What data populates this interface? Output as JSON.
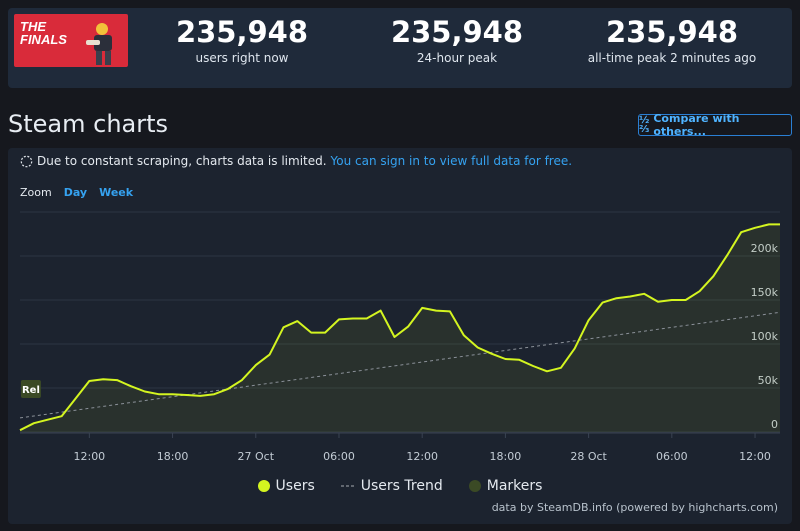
{
  "game": {
    "logo_text": "THE FINALS"
  },
  "stats": [
    {
      "value": "235,948",
      "label": "users right now"
    },
    {
      "value": "235,948",
      "label": "24-hour peak"
    },
    {
      "value": "235,948",
      "label": "all-time peak 2 minutes ago"
    }
  ],
  "section": {
    "title": "Steam charts",
    "compare_label": "Compare with others..."
  },
  "notice": {
    "text": "Due to constant scraping, charts data is limited.",
    "link": "You can sign in to view full data for free."
  },
  "zoom": {
    "label": "Zoom",
    "options": [
      "Day",
      "Week"
    ]
  },
  "credit": "data by SteamDB.info (powered by highcharts.com)",
  "colors": {
    "users": "#d4f520",
    "trend": "#8a9098",
    "markers": "#3b4a25",
    "accent": "#35a2f0"
  },
  "chart_data": {
    "type": "line",
    "x_tick_labels": [
      "12:00",
      "18:00",
      "27 Oct",
      "06:00",
      "12:00",
      "18:00",
      "28 Oct",
      "06:00",
      "12:00"
    ],
    "x_tick_hours": [
      12,
      18,
      24,
      30,
      36,
      42,
      48,
      54,
      60
    ],
    "y_tick_labels": [
      "0",
      "50k",
      "100k",
      "150k",
      "200k"
    ],
    "y_ticks": [
      0,
      50000,
      100000,
      150000,
      200000
    ],
    "ylim": [
      0,
      250000
    ],
    "xlim_hours": [
      7,
      61.8
    ],
    "marker": {
      "label": "Rel",
      "hour": 7.5
    },
    "series": [
      {
        "name": "Users",
        "hours": [
          7,
          8,
          9,
          10,
          11,
          12,
          13,
          14,
          15,
          16,
          17,
          18,
          19,
          20,
          21,
          22,
          23,
          24,
          25,
          26,
          27,
          28,
          29,
          30,
          31,
          32,
          33,
          34,
          35,
          36,
          37,
          38,
          39,
          40,
          41,
          42,
          43,
          44,
          45,
          46,
          47,
          48,
          49,
          50,
          51,
          52,
          53,
          54,
          55,
          56,
          57,
          58,
          59,
          60,
          61,
          61.8
        ],
        "values": [
          2000,
          10000,
          14000,
          18000,
          38000,
          58000,
          60000,
          59000,
          52000,
          46000,
          43000,
          43000,
          42000,
          41000,
          43000,
          49000,
          59000,
          76000,
          88000,
          119000,
          126000,
          113000,
          113000,
          128000,
          129000,
          129000,
          138000,
          108000,
          120000,
          141000,
          138000,
          137000,
          110000,
          96000,
          89000,
          83000,
          82000,
          75000,
          69000,
          73000,
          95000,
          127000,
          147000,
          152000,
          154000,
          157000,
          148000,
          150000,
          150000,
          160000,
          177000,
          201000,
          227000,
          232000,
          235948,
          235948
        ]
      },
      {
        "name": "Users Trend",
        "hours": [
          7,
          61.8
        ],
        "values": [
          16000,
          136000
        ]
      }
    ],
    "legend": [
      "Users",
      "Users Trend",
      "Markers"
    ]
  }
}
